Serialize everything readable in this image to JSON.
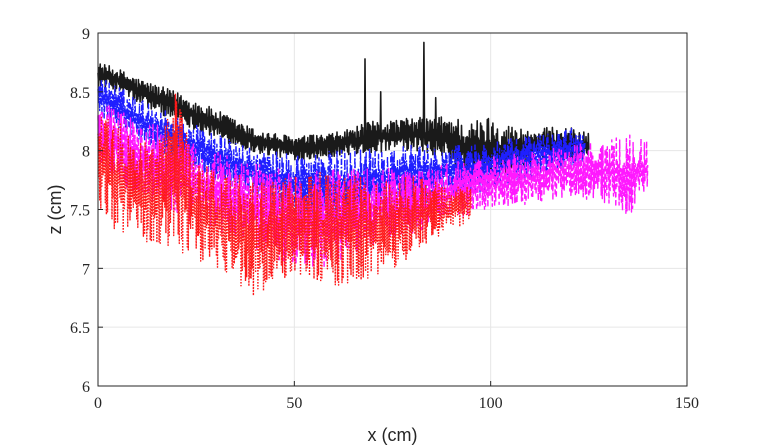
{
  "chart_data": {
    "type": "line",
    "title": "",
    "xlabel": "x (cm)",
    "ylabel": "z (cm)",
    "xlim": [
      0,
      150
    ],
    "ylim": [
      6,
      9
    ],
    "xticks": [
      0,
      50,
      100,
      150
    ],
    "yticks": [
      6,
      6.5,
      7,
      7.5,
      8,
      8.5,
      9
    ],
    "xtick_labels": [
      "0",
      "50",
      "100",
      "150"
    ],
    "ytick_labels": [
      "6",
      "6.5",
      "7",
      "7.5",
      "8",
      "8.5",
      "9"
    ],
    "grid": true,
    "legend": "none",
    "series": [
      {
        "color": "#1a1a1a",
        "style": "solid",
        "envelope": {
          "x": [
            0,
            5,
            10,
            20,
            30,
            40,
            50,
            60,
            70,
            80,
            90,
            95,
            100,
            105,
            110,
            115,
            120,
            125
          ],
          "top": [
            8.75,
            8.7,
            8.62,
            8.5,
            8.35,
            8.18,
            8.12,
            8.15,
            8.25,
            8.28,
            8.3,
            8.25,
            8.3,
            8.22,
            8.18,
            8.2,
            8.2,
            8.15
          ],
          "bot": [
            8.55,
            8.5,
            8.4,
            8.25,
            8.1,
            7.98,
            7.92,
            7.95,
            7.98,
            8.0,
            7.9,
            7.7,
            7.75,
            7.8,
            7.9,
            7.9,
            7.95,
            7.9
          ]
        },
        "spikes": [
          [
            68,
            8.78
          ],
          [
            72,
            8.5
          ],
          [
            83,
            8.92
          ],
          [
            86,
            8.45
          ]
        ]
      },
      {
        "color": "#1f1fff",
        "style": "dash-dot",
        "envelope": {
          "x": [
            0,
            5,
            10,
            20,
            30,
            40,
            50,
            60,
            70,
            80,
            90,
            100,
            105,
            110,
            115,
            120,
            124
          ],
          "top": [
            8.65,
            8.55,
            8.45,
            8.3,
            8.15,
            8.0,
            7.98,
            8.0,
            8.05,
            8.05,
            8.05,
            8.08,
            8.1,
            8.15,
            8.15,
            8.2,
            8.15
          ],
          "bot": [
            8.3,
            8.2,
            8.1,
            7.9,
            7.75,
            7.6,
            7.45,
            7.35,
            7.45,
            7.5,
            7.6,
            7.65,
            7.7,
            7.75,
            7.8,
            7.85,
            7.9
          ]
        }
      },
      {
        "color": "#ff19ff",
        "style": "dashed",
        "envelope": {
          "x": [
            0,
            5,
            10,
            20,
            30,
            40,
            50,
            60,
            70,
            80,
            90,
            100,
            110,
            120,
            130,
            135,
            140
          ],
          "top": [
            8.45,
            8.35,
            8.3,
            8.15,
            8.0,
            7.9,
            7.85,
            7.85,
            7.85,
            7.85,
            7.9,
            7.95,
            8.0,
            8.05,
            8.1,
            8.15,
            8.1
          ],
          "bot": [
            7.9,
            7.75,
            7.6,
            7.45,
            7.3,
            7.15,
            7.0,
            7.0,
            7.2,
            7.3,
            7.4,
            7.5,
            7.55,
            7.6,
            7.55,
            7.45,
            7.6
          ]
        }
      },
      {
        "color": "#ff1a1a",
        "style": "dotted",
        "envelope": {
          "x": [
            0,
            5,
            10,
            15,
            20,
            25,
            30,
            35,
            40,
            45,
            50,
            55,
            60,
            65,
            70,
            75,
            80,
            85,
            90,
            95
          ],
          "top": [
            8.3,
            8.25,
            8.15,
            8.05,
            8.55,
            7.95,
            7.85,
            7.8,
            7.75,
            7.8,
            7.8,
            7.8,
            7.85,
            7.8,
            7.75,
            7.75,
            7.8,
            7.75,
            7.7,
            7.7
          ],
          "bot": [
            7.5,
            7.3,
            7.25,
            7.2,
            7.15,
            7.05,
            7.0,
            6.9,
            6.72,
            6.85,
            6.95,
            6.85,
            6.85,
            6.85,
            6.9,
            7.0,
            7.1,
            7.25,
            7.3,
            7.4
          ]
        }
      }
    ]
  }
}
